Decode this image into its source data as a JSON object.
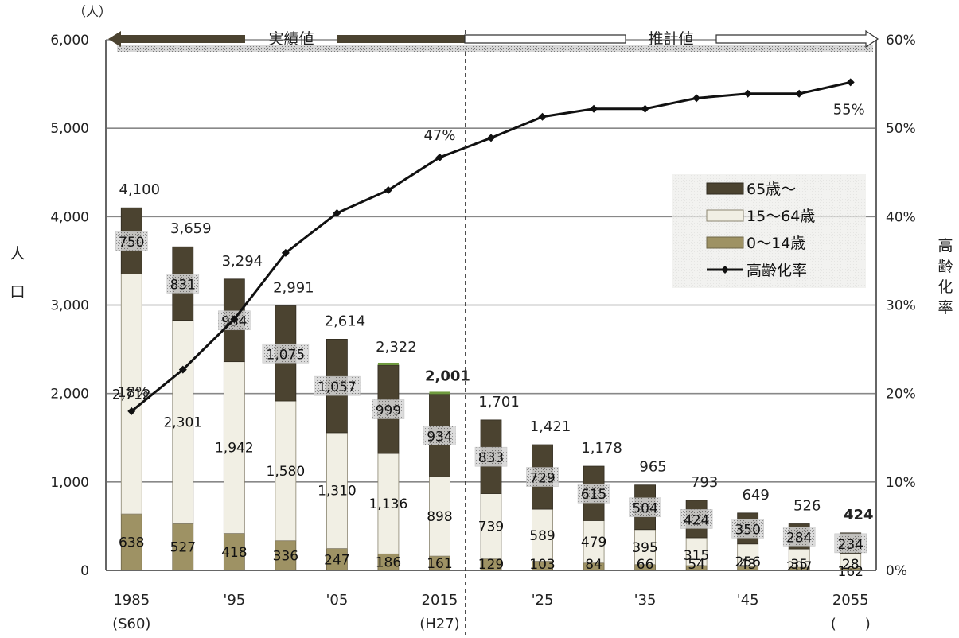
{
  "colors": {
    "age65plus": "#4b4330",
    "age15to64": "#f1efe4",
    "age0to14": "#9e9264",
    "rate_line": "#111111",
    "grid": "#888888",
    "axis": "#666666",
    "recent_bar_top": "#6f9a3e"
  },
  "chart_data": {
    "type": "bar",
    "stacked": true,
    "title": "",
    "ylabel": "人口",
    "y2label": "高齢化率",
    "yunit": "（人）",
    "ylim": [
      0,
      6000
    ],
    "y2lim": [
      0,
      60
    ],
    "yticks": [
      "0",
      "1,000",
      "2,000",
      "3,000",
      "4,000",
      "5,000",
      "6,000"
    ],
    "y2ticks": [
      "0%",
      "10%",
      "20%",
      "30%",
      "40%",
      "50%",
      "60%"
    ],
    "grid": true,
    "legend_position": "top-right",
    "x": [
      1985,
      1990,
      1995,
      2000,
      2005,
      2010,
      2015,
      2020,
      2025,
      2030,
      2035,
      2040,
      2045,
      2050,
      2055
    ],
    "xtick_labels": [
      {
        "line1": "1985",
        "line2": "(S60)"
      },
      {
        "line1": "",
        "line2": ""
      },
      {
        "line1": "'95",
        "line2": ""
      },
      {
        "line1": "",
        "line2": ""
      },
      {
        "line1": "'05",
        "line2": ""
      },
      {
        "line1": "",
        "line2": ""
      },
      {
        "line1": "2015",
        "line2": "(H27)"
      },
      {
        "line1": "",
        "line2": ""
      },
      {
        "line1": "'25",
        "line2": ""
      },
      {
        "line1": "",
        "line2": ""
      },
      {
        "line1": "'35",
        "line2": ""
      },
      {
        "line1": "",
        "line2": ""
      },
      {
        "line1": "'45",
        "line2": ""
      },
      {
        "line1": "",
        "line2": ""
      },
      {
        "line1": "2055",
        "line2": "(　　)"
      }
    ],
    "totals": [
      "4,100",
      "3,659",
      "3,294",
      "2,991",
      "2,614",
      "2,322",
      "2,001",
      "1,701",
      "1,421",
      "1,178",
      "965",
      "793",
      "649",
      "526",
      "424"
    ],
    "totals_bold": [
      false,
      false,
      false,
      false,
      false,
      false,
      true,
      false,
      false,
      false,
      false,
      false,
      false,
      false,
      true
    ],
    "series": [
      {
        "name": "0～14歳",
        "values": [
          638,
          527,
          418,
          336,
          247,
          186,
          161,
          129,
          103,
          84,
          66,
          54,
          43,
          35,
          28
        ]
      },
      {
        "name": "15～64歳",
        "values": [
          2712,
          2301,
          1942,
          1580,
          1310,
          1136,
          898,
          739,
          589,
          479,
          395,
          315,
          256,
          207,
          162
        ]
      },
      {
        "name": "65歳～",
        "values": [
          750,
          831,
          934,
          1075,
          1057,
          999,
          934,
          833,
          729,
          615,
          504,
          424,
          350,
          284,
          234
        ]
      },
      {
        "name": "高齢化率",
        "type": "line",
        "axis": "right",
        "values": [
          18,
          22.7,
          28.4,
          35.9,
          40.4,
          43,
          46.7,
          48.9,
          51.3,
          52.2,
          52.2,
          53.4,
          53.9,
          53.9,
          55.2
        ]
      }
    ],
    "series_value_labels": {
      "0～14歳": [
        "638",
        "527",
        "418",
        "336",
        "247",
        "186",
        "161",
        "129",
        "103",
        "84",
        "66",
        "54",
        "43",
        "35",
        "28"
      ],
      "15～64歳": [
        "2,712",
        "2,301",
        "1,942",
        "1,580",
        "1,310",
        "1,136",
        "898",
        "739",
        "589",
        "479",
        "395",
        "315",
        "256",
        "207",
        "162"
      ],
      "65歳～": [
        "750",
        "831",
        "934",
        "1,075",
        "1,057",
        "999",
        "934",
        "833",
        "729",
        "615",
        "504",
        "424",
        "350",
        "284",
        "234"
      ]
    },
    "rate_annotations": [
      {
        "index": 0,
        "text": "18%"
      },
      {
        "index": 6,
        "text": "47%"
      },
      {
        "index": 14,
        "text": "55%"
      }
    ],
    "period_labels": {
      "actual": "実績値",
      "estimate": "推計値"
    }
  }
}
